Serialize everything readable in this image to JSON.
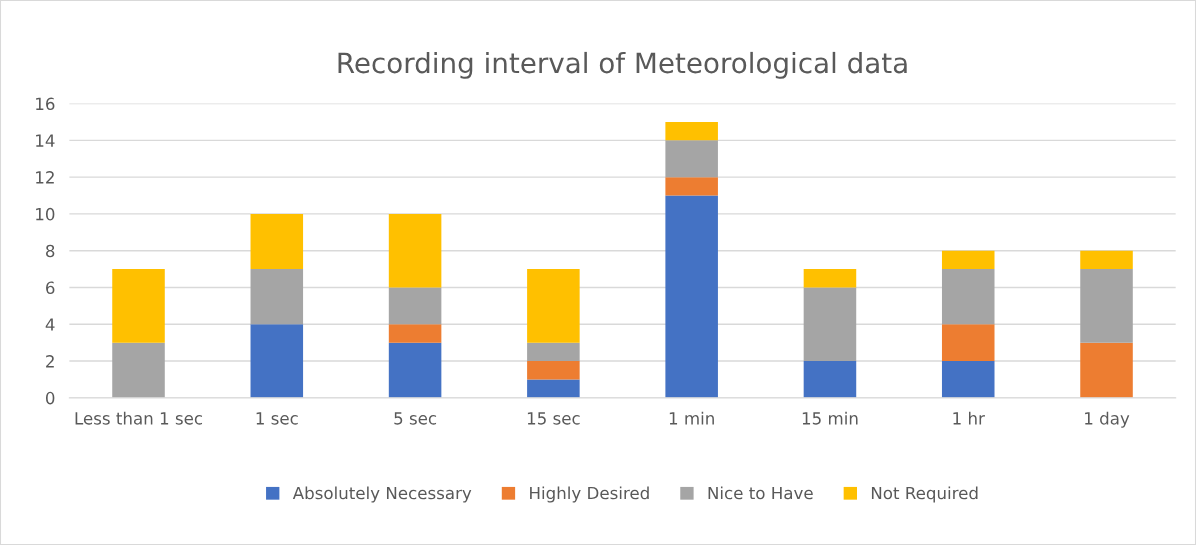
{
  "chart_data": {
    "type": "bar",
    "title": "Recording interval of Meteorological data",
    "stacked": true,
    "categories": [
      "Less than 1 sec",
      "1 sec",
      "5 sec",
      "15 sec",
      "1 min",
      "15 min",
      "1 hr",
      "1 day"
    ],
    "series": [
      {
        "name": "Absolutely Necessary",
        "color": "#4472c4",
        "values": [
          0,
          4,
          3,
          1,
          11,
          2,
          2,
          0
        ]
      },
      {
        "name": "Highly Desired",
        "color": "#ed7d31",
        "values": [
          0,
          0,
          1,
          1,
          1,
          0,
          2,
          3
        ]
      },
      {
        "name": "Nice to Have",
        "color": "#a5a5a5",
        "values": [
          3,
          3,
          2,
          1,
          2,
          4,
          3,
          4
        ]
      },
      {
        "name": "Not Required",
        "color": "#ffc000",
        "values": [
          4,
          3,
          4,
          4,
          1,
          1,
          1,
          1
        ]
      }
    ],
    "ylim": [
      0,
      16
    ],
    "yticks": [
      0,
      2,
      4,
      6,
      8,
      10,
      12,
      14,
      16
    ],
    "grid": "y",
    "legend": "bottom"
  }
}
